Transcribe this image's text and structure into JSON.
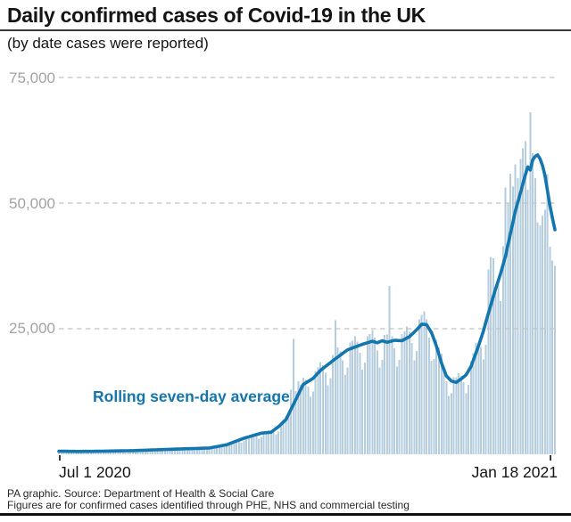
{
  "title": "Daily confirmed cases of Covid-19 in the UK",
  "subtitle": "(by date cases were reported)",
  "annotation": "Rolling seven-day average",
  "x_axis": {
    "start_label": "Jul 1 2020",
    "end_label": "Jan 18 2021"
  },
  "y_axis": {
    "labels": [
      "75,000",
      "50,000",
      "25,000"
    ]
  },
  "footer": {
    "line1": "PA graphic. Source: Department of Health & Social Care",
    "line2": "Figures are for confirmed cases identified through PHE, NHS and commercial testing"
  },
  "colors": {
    "bar": "#b5cdde",
    "line": "#1376ae",
    "grid": "#c2c2c2",
    "axis_label": "#a3a3a3",
    "text": "#141414"
  },
  "chart_data": {
    "type": "bar",
    "title": "Daily confirmed cases of Covid-19 in the UK",
    "subtitle": "(by date cases were reported)",
    "xlabel": "",
    "ylabel": "",
    "x_range": [
      "Jul 1 2020",
      "Jan 18 2021"
    ],
    "n_days": 202,
    "ylim": [
      0,
      75000
    ],
    "gridlines": [
      25000,
      50000,
      75000
    ],
    "grid": "dashed-horizontal",
    "legend_position": "in-plot-text",
    "series": [
      {
        "name": "Daily confirmed cases",
        "type": "bar",
        "color": "#b5cdde",
        "values": [
          663,
          674,
          630,
          557,
          455,
          485,
          612,
          610,
          630,
          599,
          538,
          447,
          485,
          622,
          631,
          659,
          631,
          573,
          480,
          525,
          679,
          696,
          725,
          695,
          630,
          528,
          577,
          746,
          763,
          794,
          760,
          688,
          584,
          645,
          844,
          871,
          916,
          885,
          809,
          684,
          753,
          982,
          1010,
          1059,
          1020,
          930,
          782,
          856,
          1110,
          1137,
          1186,
          1138,
          1031,
          866,
          947,
          1225,
          1254,
          1307,
          1251,
          1134,
          950,
          1038,
          1424,
          1536,
          1682,
          1686,
          1594,
          1391,
          1577,
          2211,
          2430,
          2703,
          2748,
          2631,
          2321,
          2656,
          3543,
          3730,
          3834,
          3922,
          3640,
          3124,
          3486,
          4505,
          4601,
          4785,
          4576,
          4433,
          3953,
          4565,
          6325,
          6883,
          7590,
          8216,
          12872,
          22961,
          12594,
          14542,
          13803,
          15290,
          14768,
          13485,
          11396,
          12533,
          16571,
          17299,
          18370,
          17766,
          16244,
          13745,
          15133,
          19734,
          26688,
          21296,
          20509,
          18674,
          15739,
          17264,
          22242,
          22649,
          23485,
          22394,
          20197,
          16863,
          18302,
          23532,
          23915,
          24750,
          23244,
          20646,
          17248,
          18758,
          23797,
          23861,
          33470,
          23470,
          21111,
          17453,
          18786,
          23956,
          24468,
          25446,
          24336,
          22196,
          18736,
          20584,
          26871,
          27713,
          28435,
          26832,
          23250,
          18634,
          18966,
          22790,
          21240,
          20020,
          17576,
          14508,
          11627,
          12118,
          15317,
          15301,
          16115,
          15600,
          14322,
          12166,
          13820,
          18550,
          20151,
          22184,
          22360,
          21390,
          18865,
          21788,
          36804,
          39237,
          39036,
          32725,
          34693,
          30501,
          41385,
          53135,
          50023,
          55892,
          53285,
          57725,
          54990,
          58784,
          60916,
          62322,
          52618,
          68053,
          59937,
          54940,
          46169,
          45533,
          47525,
          48682,
          55761,
          41346,
          38598,
          37535
        ]
      },
      {
        "name": "Rolling seven-day average",
        "type": "line",
        "color": "#1376ae",
        "points_day_value": [
          [
            0,
            620
          ],
          [
            7,
            570
          ],
          [
            14,
            590
          ],
          [
            21,
            650
          ],
          [
            31,
            740
          ],
          [
            45,
            1000
          ],
          [
            61,
            1250
          ],
          [
            68,
            1900
          ],
          [
            75,
            3200
          ],
          [
            82,
            4200
          ],
          [
            86,
            4400
          ],
          [
            89,
            5500
          ],
          [
            92,
            6900
          ],
          [
            96,
            10900
          ],
          [
            99,
            13900
          ],
          [
            103,
            15100
          ],
          [
            106,
            16700
          ],
          [
            112,
            19000
          ],
          [
            117,
            20800
          ],
          [
            123,
            21900
          ],
          [
            127,
            22500
          ],
          [
            129,
            22200
          ],
          [
            131,
            22600
          ],
          [
            133,
            22300
          ],
          [
            136,
            22700
          ],
          [
            139,
            22600
          ],
          [
            142,
            23400
          ],
          [
            145,
            24800
          ],
          [
            147,
            25900
          ],
          [
            149,
            25800
          ],
          [
            151,
            24200
          ],
          [
            153,
            21500
          ],
          [
            155,
            18200
          ],
          [
            157,
            15600
          ],
          [
            159,
            14600
          ],
          [
            161,
            14300
          ],
          [
            163,
            15000
          ],
          [
            165,
            15800
          ],
          [
            167,
            17500
          ],
          [
            170,
            21500
          ],
          [
            172,
            24500
          ],
          [
            174,
            28000
          ],
          [
            177,
            33000
          ],
          [
            179,
            36000
          ],
          [
            181,
            39500
          ],
          [
            183,
            44000
          ],
          [
            185,
            48500
          ],
          [
            187,
            52000
          ],
          [
            189,
            55600
          ],
          [
            190,
            57200
          ],
          [
            191,
            56600
          ],
          [
            192,
            58600
          ],
          [
            193,
            59300
          ],
          [
            194,
            59600
          ],
          [
            195,
            58800
          ],
          [
            196,
            57400
          ],
          [
            197,
            55400
          ],
          [
            198,
            52400
          ],
          [
            199,
            49400
          ],
          [
            200,
            47000
          ],
          [
            201,
            44700
          ]
        ]
      }
    ]
  }
}
